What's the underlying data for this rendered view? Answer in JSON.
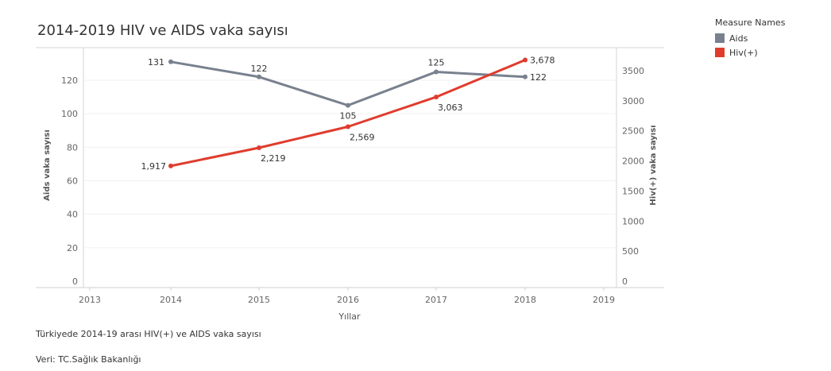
{
  "title": "2014-2019 HIV ve AIDS vaka sayısı",
  "legend": {
    "title": "Measure Names",
    "items": [
      {
        "label": "Aids",
        "color": "#79818f"
      },
      {
        "label": "Hiv(+)",
        "color": "#e03c2e"
      }
    ]
  },
  "footnote": "Türkiyede 2014-19 arası HIV(+) ve AIDS vaka sayısı",
  "source": "Veri: TC.Sağlık Bakanlığı",
  "chart_data": {
    "type": "line",
    "xlabel": "Yıllar",
    "x_ticks": [
      "2013",
      "2014",
      "2015",
      "2016",
      "2017",
      "2018",
      "2019"
    ],
    "xlim": [
      2013,
      2019
    ],
    "y_left": {
      "label": "Aids vaka sayısı",
      "ylim": [
        0,
        135
      ],
      "ticks": [
        "0",
        "20",
        "40",
        "60",
        "80",
        "100",
        "120"
      ]
    },
    "y_right": {
      "label": "Hiv(+) vaka sayısı",
      "ylim": [
        0,
        3850
      ],
      "ticks": [
        "0",
        "500",
        "1000",
        "1500",
        "2000",
        "2500",
        "3000",
        "3500"
      ]
    },
    "series": [
      {
        "name": "Aids",
        "axis": "left",
        "color": "#79818f",
        "x": [
          2014,
          2015,
          2016,
          2017,
          2018
        ],
        "values": [
          131,
          122,
          105,
          125,
          122
        ],
        "labels": [
          "131",
          "122",
          "105",
          "125",
          "122"
        ]
      },
      {
        "name": "Hiv(+)",
        "axis": "right",
        "color": "#e03c2e",
        "x": [
          2014,
          2015,
          2016,
          2017,
          2018
        ],
        "values": [
          1917,
          2219,
          2569,
          3063,
          3678
        ],
        "labels": [
          "1,917",
          "2,219",
          "2,569",
          "3,063",
          "3,678"
        ]
      }
    ],
    "grid": true,
    "legend_position": "top-right"
  }
}
